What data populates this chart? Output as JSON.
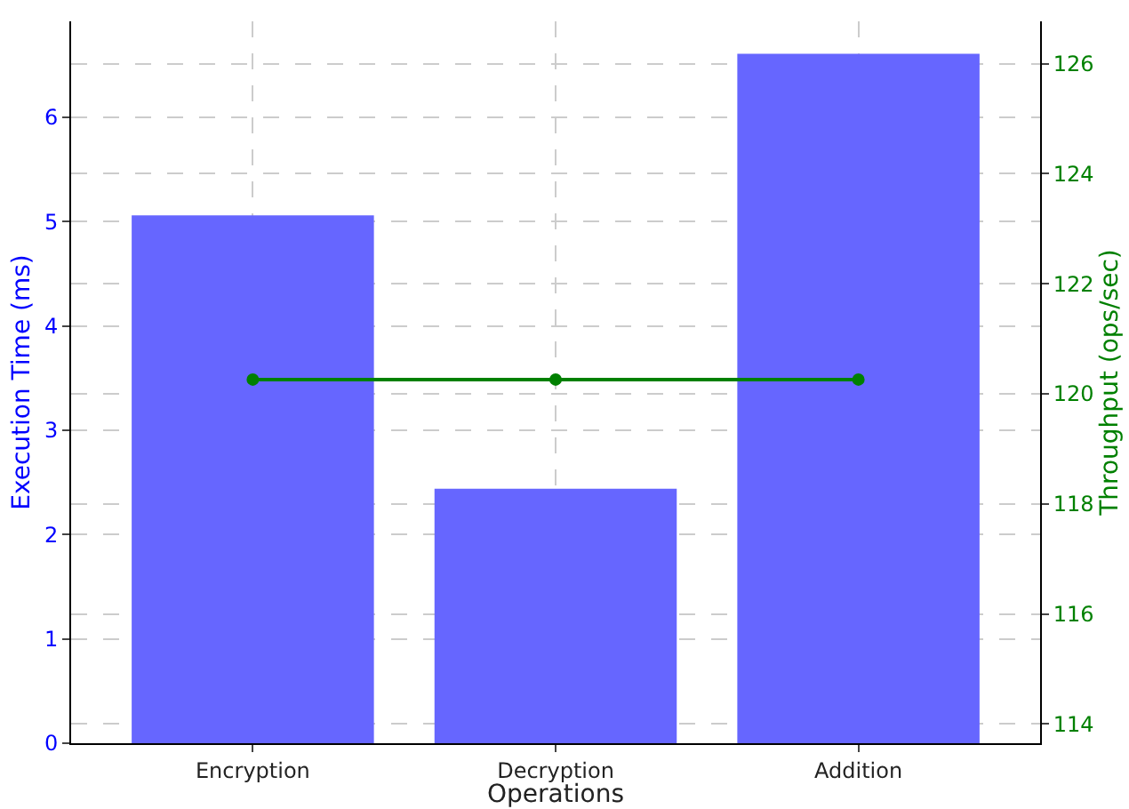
{
  "chart_data": {
    "type": "bar",
    "xlabel": "Operations",
    "ylabel": "Execution Time (ms)",
    "y2label": "Throughput (ops/sec)",
    "categories": [
      "Encryption",
      "Decryption",
      "Addition"
    ],
    "series": [
      {
        "color": "#6666ff",
        "values": [
          5.06,
          2.44,
          6.61
        ]
      },
      {
        "type": "line",
        "axis": "y2",
        "color": "#008000",
        "values": [
          120.26,
          120.26,
          120.26
        ],
        "marker": "circle",
        "line_style": "solid"
      }
    ],
    "ylim": [
      0,
      6.92
    ],
    "yticks": [
      0,
      1,
      2,
      3,
      4,
      5,
      6
    ],
    "y2lim": [
      113.65,
      126.77
    ],
    "y2ticks": [
      114,
      116,
      118,
      120,
      122,
      124,
      126
    ],
    "grid": true
  }
}
